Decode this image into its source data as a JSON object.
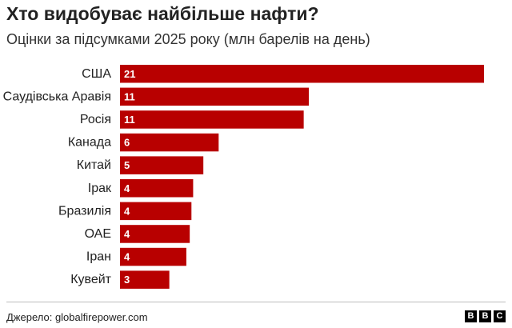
{
  "header": {
    "title": "Хто видобуває найбільше нафти?",
    "subtitle": "Оцінки за підсумками 2025 року (млн барелів на день)"
  },
  "chart_data": {
    "type": "bar",
    "orientation": "horizontal",
    "title": "Хто видобуває найбільше нафти?",
    "subtitle": "Оцінки за підсумками 2025 року (млн барелів на день)",
    "categories": [
      "США",
      "Саудівська Аравія",
      "Росія",
      "Канада",
      "Китай",
      "Ірак",
      "Бразилія",
      "ОАЕ",
      "Іран",
      "Кувейт"
    ],
    "values": [
      21.4,
      11.1,
      10.8,
      5.8,
      4.9,
      4.3,
      4.2,
      4.1,
      3.9,
      2.9
    ],
    "value_labels": [
      "21",
      "11",
      "11",
      "6",
      "5",
      "4",
      "4",
      "4",
      "4",
      "3"
    ],
    "xlim": [
      0,
      21.4
    ],
    "grid": false,
    "xlabel": "",
    "ylabel": "",
    "colors": {
      "bar": "#b80000",
      "bar_label": "#ffffff"
    }
  },
  "footer": {
    "source": "Джерело: globalfirepower.com",
    "logo_letters": [
      "B",
      "B",
      "C"
    ]
  }
}
